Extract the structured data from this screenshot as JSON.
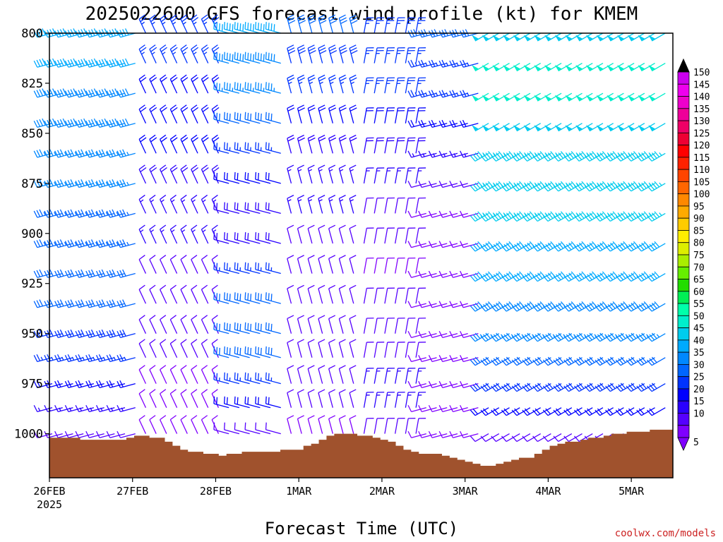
{
  "chart_data": {
    "type": "wind_barb_profile",
    "title": "2025022600 GFS forecast wind profile (kt) for KMEM",
    "xlabel": "Forecast Time (UTC)",
    "ylabel": "",
    "y_ticks": [
      "800",
      "825",
      "850",
      "875",
      "900",
      "925",
      "950",
      "975",
      "1000"
    ],
    "y_range_hpa": [
      800,
      1022
    ],
    "x_ticks": [
      "26FEB",
      "27FEB",
      "28FEB",
      "1MAR",
      "2MAR",
      "3MAR",
      "4MAR",
      "5MAR"
    ],
    "x_year_label": "2025",
    "x_range_hours": [
      0,
      180
    ],
    "time_step_hours": 3,
    "pressure_levels_hpa": [
      800,
      815,
      830,
      845,
      860,
      875,
      890,
      905,
      920,
      935,
      950,
      962,
      975,
      987,
      1000
    ],
    "colorbar": {
      "labels": [
        "5",
        "10",
        "15",
        "20",
        "25",
        "30",
        "35",
        "40",
        "45",
        "50",
        "55",
        "60",
        "65",
        "70",
        "75",
        "80",
        "85",
        "90",
        "95",
        "100",
        "105",
        "110",
        "115",
        "120",
        "125",
        "130",
        "135",
        "140",
        "145",
        "150"
      ],
      "colors": [
        "#7f00ff",
        "#5500ff",
        "#2a00ff",
        "#0000ff",
        "#0033ff",
        "#0066ff",
        "#0088ff",
        "#00aaff",
        "#00ccee",
        "#00eecc",
        "#00ffaa",
        "#00ee55",
        "#22dd00",
        "#66ee00",
        "#aaee00",
        "#ddee00",
        "#ffee00",
        "#ffcc00",
        "#ffaa00",
        "#ff8800",
        "#ff6600",
        "#ff4400",
        "#ff2200",
        "#ff0000",
        "#ee0033",
        "#ee0066",
        "#ee0099",
        "#ee00cc",
        "#ee00ee",
        "#cc00ee"
      ]
    },
    "terrain_color": "#a0522d",
    "terrain_surface_hpa": [
      1002,
      1002,
      1002,
      1002,
      1003,
      1003,
      1003,
      1003,
      1003,
      1003,
      1002,
      1001,
      1001,
      1002,
      1002,
      1004,
      1006,
      1008,
      1009,
      1009,
      1010,
      1010,
      1011,
      1010,
      1010,
      1009,
      1009,
      1009,
      1009,
      1009,
      1008,
      1008,
      1008,
      1006,
      1005,
      1003,
      1001,
      1000,
      1000,
      1000,
      1001,
      1001,
      1002,
      1003,
      1004,
      1006,
      1008,
      1009,
      1010,
      1010,
      1010,
      1011,
      1012,
      1013,
      1014,
      1015,
      1016,
      1016,
      1015,
      1014,
      1013,
      1012,
      1012,
      1010,
      1008,
      1006,
      1005,
      1004,
      1004,
      1003,
      1002,
      1002,
      1001,
      1000,
      1000,
      999,
      999,
      999,
      998,
      998,
      998
    ],
    "wind_regimes": [
      {
        "from_hour": 0,
        "to_hour": 27,
        "dir_deg": 255,
        "speed_kt": [
          40,
          40,
          38,
          38,
          36,
          35,
          34,
          33,
          32,
          30,
          28,
          25,
          20,
          15,
          10
        ]
      },
      {
        "from_hour": 27,
        "to_hour": 51,
        "dir_deg": 335,
        "speed_kt": [
          25,
          25,
          22,
          20,
          20,
          18,
          15,
          15,
          12,
          12,
          10,
          10,
          8,
          8,
          8
        ]
      },
      {
        "from_hour": 51,
        "to_hour": 69,
        "dir_deg": 285,
        "speed_kt": [
          40,
          38,
          35,
          30,
          25,
          20,
          18,
          18,
          25,
          30,
          30,
          30,
          25,
          20,
          10
        ]
      },
      {
        "from_hour": 69,
        "to_hour": 90,
        "dir_deg": 345,
        "speed_kt": [
          30,
          28,
          25,
          20,
          18,
          15,
          15,
          12,
          12,
          12,
          12,
          12,
          10,
          10,
          8
        ]
      },
      {
        "from_hour": 90,
        "to_hour": 108,
        "dir_deg": 10,
        "speed_kt": [
          25,
          25,
          25,
          20,
          18,
          15,
          12,
          10,
          8,
          10,
          10,
          12,
          15,
          15,
          10
        ]
      },
      {
        "from_hour": 108,
        "to_hour": 126,
        "dir_deg": 255,
        "speed_kt": [
          30,
          25,
          25,
          20,
          15,
          10,
          8,
          8,
          8,
          8,
          8,
          8,
          8,
          8,
          8
        ]
      },
      {
        "from_hour": 126,
        "to_hour": 180,
        "dir_deg": 240,
        "speed_kt": [
          48,
          50,
          50,
          48,
          47,
          46,
          45,
          42,
          40,
          38,
          35,
          32,
          28,
          22,
          12
        ]
      }
    ]
  },
  "credit": "coolwx.com/models"
}
